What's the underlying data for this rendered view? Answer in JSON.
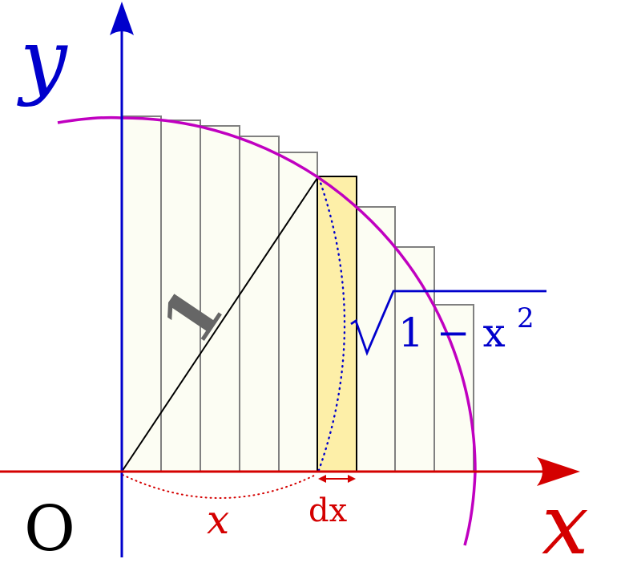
{
  "labels": {
    "y_axis": "y",
    "x_axis": "x",
    "origin": "O",
    "radius": "1",
    "x_segment": "x",
    "dx": "dx",
    "sqrt_radicand": "1 − x",
    "sqrt_exponent": "2"
  },
  "colors": {
    "y_axis": "#0000cc",
    "x_axis": "#d40000",
    "arc": "#c000c0",
    "strip_fill": "#fdefa8",
    "bar_fill": "#fcfdf3",
    "bar_stroke": "#808080",
    "radius_line": "#000000",
    "sqrt": "#0000cc",
    "radius_label": "#666666"
  }
}
